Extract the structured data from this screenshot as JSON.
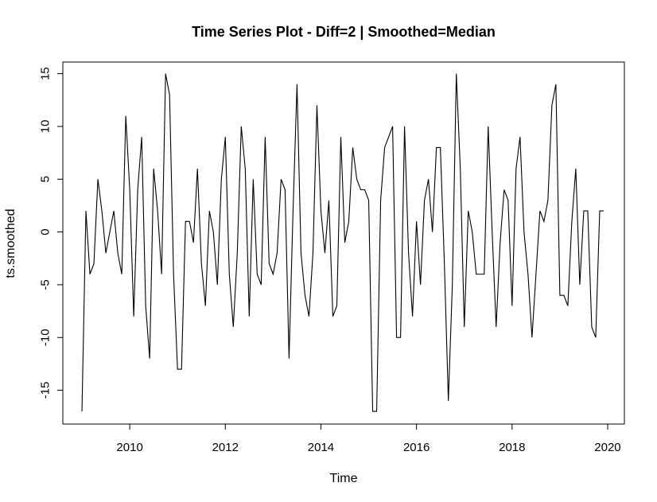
{
  "chart_data": {
    "type": "line",
    "title": "Time Series Plot - Diff=2 | Smoothed=Median",
    "xlabel": "Time",
    "ylabel": "ts.smoothed",
    "xlim": [
      2008.6,
      2020.35
    ],
    "ylim": [
      -18.2,
      16.1
    ],
    "x_ticks": [
      2010,
      2012,
      2014,
      2016,
      2018,
      2020
    ],
    "y_ticks": [
      -15,
      -10,
      -5,
      0,
      5,
      10,
      15
    ],
    "grid": false,
    "series_color": "#000000",
    "start": 2009.0,
    "frequency": 12,
    "values": [
      -17,
      2,
      -4,
      -3,
      5,
      2,
      -2,
      0,
      2,
      -2,
      -4,
      11,
      4,
      -8,
      4,
      9,
      -7,
      -12,
      6,
      2,
      -4,
      15,
      13,
      -4,
      -13,
      -13,
      1,
      1,
      -1,
      6,
      -3,
      -7,
      2,
      0,
      -5,
      5,
      9,
      -4,
      -9,
      -2,
      10,
      6,
      -8,
      5,
      -4,
      -5,
      9,
      -3,
      -4,
      -2,
      5,
      4,
      -12,
      2,
      14,
      -2,
      -6,
      -8,
      -2,
      12,
      2,
      -2,
      3,
      -8,
      -7,
      9,
      -1,
      1,
      8,
      5,
      4,
      4,
      3,
      -17,
      -17,
      3,
      8,
      9,
      10,
      -10,
      -10,
      10,
      -2,
      -8,
      1,
      -5,
      3,
      5,
      0,
      8,
      8,
      -3,
      -16,
      -5,
      15,
      6,
      -9,
      2,
      0,
      -4,
      -4,
      -4,
      10,
      0,
      -9,
      -1,
      4,
      3,
      -7,
      6,
      9,
      0,
      -4,
      -10,
      -4,
      2,
      1,
      3,
      12,
      14,
      -6,
      -6,
      -7,
      1,
      6,
      -5,
      2,
      2,
      -9,
      -10,
      2,
      2
    ]
  }
}
